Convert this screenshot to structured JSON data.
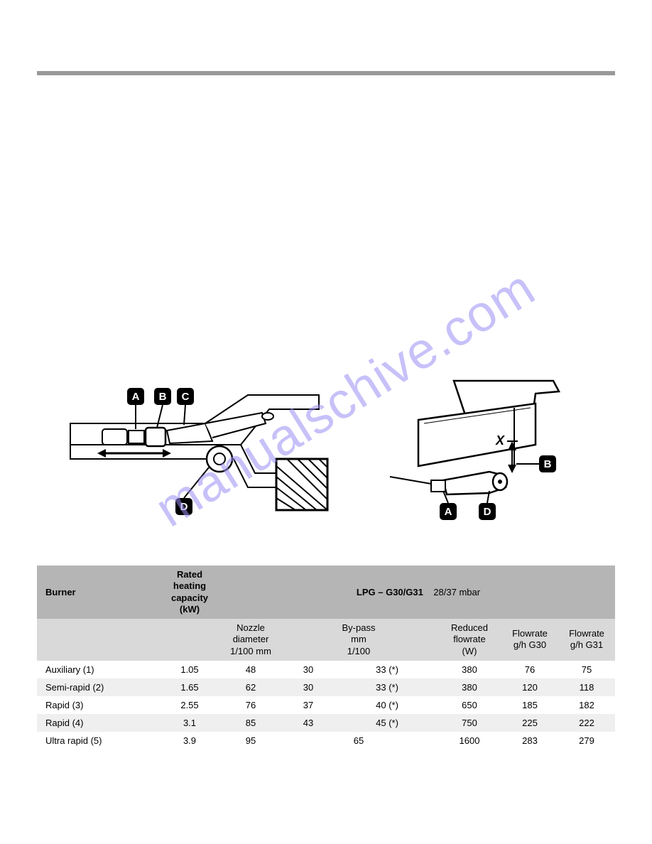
{
  "watermark_text": "manualschive.com",
  "colors": {
    "rule": "#999999",
    "hdr_dark": "#b5b5b5",
    "hdr_light": "#d9d9d9",
    "row_even": "#efefef",
    "row_odd": "#ffffff",
    "watermark": "#9b8ff5"
  },
  "diagram_labels": {
    "A": "A",
    "B": "B",
    "C": "C",
    "D": "D",
    "X": "X"
  },
  "table": {
    "burner_header": "Burner",
    "capacity_header": "Rated\nheating\ncapacity\n(kW)",
    "lpg_header_bold": "LPG – G30/G31",
    "lpg_header_note": "28/37 mbar",
    "sub_headers": {
      "nozzle": "Nozzle\ndiameter\n1/100 mm",
      "bypass": "By-pass\nmm\n1/100",
      "reduced": "Reduced\nflowrate\n(W)",
      "flow_g30": "Flowrate\ng/h G30",
      "flow_g31": "Flowrate\ng/h G31"
    },
    "rows": [
      {
        "burner": "Auxiliary (1)",
        "kw": "1.05",
        "nozzle": "48",
        "bypass_a": "30",
        "bypass_b": "33 (*)",
        "bypass_span": "",
        "reduced": "380",
        "g30": "76",
        "g31": "75"
      },
      {
        "burner": "Semi-rapid (2)",
        "kw": "1.65",
        "nozzle": "62",
        "bypass_a": "30",
        "bypass_b": "33 (*)",
        "bypass_span": "",
        "reduced": "380",
        "g30": "120",
        "g31": "118"
      },
      {
        "burner": "Rapid (3)",
        "kw": "2.55",
        "nozzle": "76",
        "bypass_a": "37",
        "bypass_b": "40 (*)",
        "bypass_span": "",
        "reduced": "650",
        "g30": "185",
        "g31": "182"
      },
      {
        "burner": "Rapid (4)",
        "kw": "3.1",
        "nozzle": "85",
        "bypass_a": "43",
        "bypass_b": "45 (*)",
        "bypass_span": "",
        "reduced": "750",
        "g30": "225",
        "g31": "222"
      },
      {
        "burner": "Ultra rapid (5)",
        "kw": "3.9",
        "nozzle": "95",
        "bypass_a": "",
        "bypass_b": "",
        "bypass_span": "65",
        "reduced": "1600",
        "g30": "283",
        "g31": "279"
      }
    ]
  }
}
